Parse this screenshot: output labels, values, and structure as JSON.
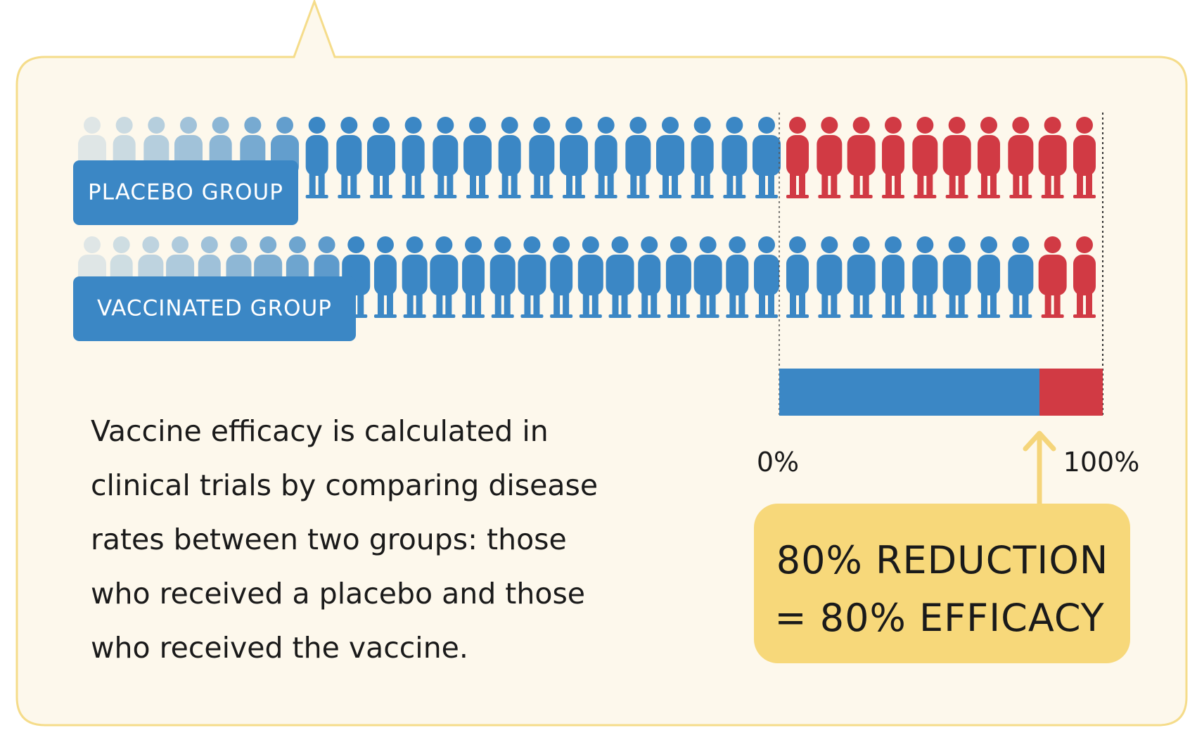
{
  "placebo_label": "PLACEBO GROUP",
  "vaccinated_label": "VACCINATED GROUP",
  "body_lines": [
    "Vaccine efficacy is calculated in",
    "clinical trials by comparing disease",
    "rates between two groups: those",
    "who received a placebo and those",
    "who received the vaccine."
  ],
  "scale_start": "0%",
  "scale_end": "100%",
  "result_lines": [
    "80% REDUCTION",
    "= 80% EFFICACY"
  ]
}
